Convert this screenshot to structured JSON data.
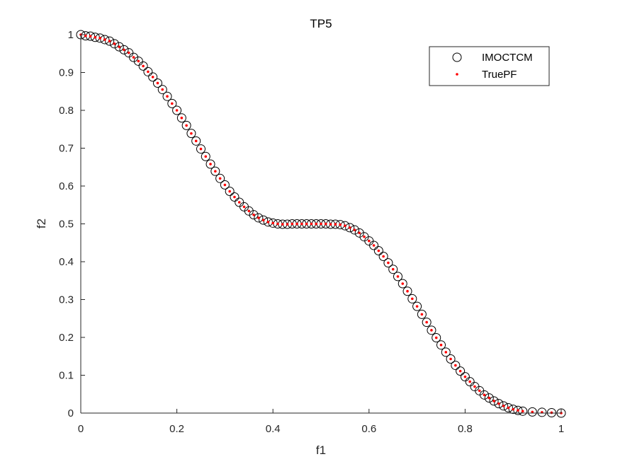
{
  "chart_data": {
    "type": "scatter",
    "title": "TP5",
    "xlabel": "f1",
    "ylabel": "f2",
    "xlim": [
      0,
      1
    ],
    "ylim": [
      0,
      1
    ],
    "xticks": [
      0,
      0.2,
      0.4,
      0.6,
      0.8,
      1
    ],
    "yticks": [
      0,
      0.1,
      0.2,
      0.3,
      0.4,
      0.5,
      0.6,
      0.7,
      0.8,
      0.9,
      1
    ],
    "xtick_labels": [
      "0",
      "0.2",
      "0.4",
      "0.6",
      "0.8",
      "1"
    ],
    "ytick_labels": [
      "0",
      "0.1",
      "0.2",
      "0.3",
      "0.4",
      "0.5",
      "0.6",
      "0.7",
      "0.8",
      "0.9",
      "1"
    ],
    "grid": false,
    "legend_position": "top-right",
    "series": [
      {
        "name": "IMOCTCM",
        "marker": "open-circle",
        "color": "#000000",
        "points": [
          [
            0.0,
            1.0
          ],
          [
            0.01,
            0.997
          ],
          [
            0.02,
            0.996
          ],
          [
            0.03,
            0.993
          ],
          [
            0.04,
            0.991
          ],
          [
            0.05,
            0.987
          ],
          [
            0.06,
            0.983
          ],
          [
            0.07,
            0.976
          ],
          [
            0.08,
            0.968
          ],
          [
            0.09,
            0.96
          ],
          [
            0.1,
            0.952
          ],
          [
            0.11,
            0.94
          ],
          [
            0.12,
            0.93
          ],
          [
            0.13,
            0.917
          ],
          [
            0.14,
            0.902
          ],
          [
            0.15,
            0.888
          ],
          [
            0.16,
            0.872
          ],
          [
            0.17,
            0.855
          ],
          [
            0.18,
            0.837
          ],
          [
            0.19,
            0.818
          ],
          [
            0.2,
            0.8
          ],
          [
            0.21,
            0.78
          ],
          [
            0.22,
            0.76
          ],
          [
            0.23,
            0.739
          ],
          [
            0.24,
            0.719
          ],
          [
            0.25,
            0.698
          ],
          [
            0.26,
            0.678
          ],
          [
            0.27,
            0.658
          ],
          [
            0.28,
            0.639
          ],
          [
            0.29,
            0.62
          ],
          [
            0.3,
            0.603
          ],
          [
            0.31,
            0.586
          ],
          [
            0.32,
            0.571
          ],
          [
            0.33,
            0.557
          ],
          [
            0.34,
            0.545
          ],
          [
            0.35,
            0.534
          ],
          [
            0.36,
            0.524
          ],
          [
            0.37,
            0.516
          ],
          [
            0.38,
            0.51
          ],
          [
            0.39,
            0.505
          ],
          [
            0.4,
            0.502
          ],
          [
            0.41,
            0.5
          ],
          [
            0.42,
            0.499
          ],
          [
            0.43,
            0.499
          ],
          [
            0.44,
            0.5
          ],
          [
            0.45,
            0.5
          ],
          [
            0.46,
            0.5
          ],
          [
            0.47,
            0.5
          ],
          [
            0.48,
            0.5
          ],
          [
            0.49,
            0.5
          ],
          [
            0.5,
            0.5
          ],
          [
            0.51,
            0.5
          ],
          [
            0.52,
            0.499
          ],
          [
            0.53,
            0.499
          ],
          [
            0.54,
            0.498
          ],
          [
            0.55,
            0.495
          ],
          [
            0.56,
            0.49
          ],
          [
            0.57,
            0.484
          ],
          [
            0.58,
            0.476
          ],
          [
            0.59,
            0.466
          ],
          [
            0.6,
            0.455
          ],
          [
            0.61,
            0.443
          ],
          [
            0.62,
            0.429
          ],
          [
            0.63,
            0.414
          ],
          [
            0.64,
            0.397
          ],
          [
            0.65,
            0.38
          ],
          [
            0.66,
            0.361
          ],
          [
            0.67,
            0.342
          ],
          [
            0.68,
            0.322
          ],
          [
            0.69,
            0.302
          ],
          [
            0.7,
            0.282
          ],
          [
            0.71,
            0.261
          ],
          [
            0.72,
            0.24
          ],
          [
            0.73,
            0.219
          ],
          [
            0.74,
            0.199
          ],
          [
            0.75,
            0.18
          ],
          [
            0.76,
            0.161
          ],
          [
            0.77,
            0.143
          ],
          [
            0.78,
            0.126
          ],
          [
            0.79,
            0.111
          ],
          [
            0.8,
            0.096
          ],
          [
            0.81,
            0.083
          ],
          [
            0.82,
            0.07
          ],
          [
            0.83,
            0.059
          ],
          [
            0.84,
            0.048
          ],
          [
            0.85,
            0.04
          ],
          [
            0.86,
            0.032
          ],
          [
            0.87,
            0.025
          ],
          [
            0.88,
            0.019
          ],
          [
            0.89,
            0.014
          ],
          [
            0.9,
            0.01
          ],
          [
            0.91,
            0.007
          ],
          [
            0.92,
            0.005
          ],
          [
            0.94,
            0.003
          ],
          [
            0.96,
            0.002
          ],
          [
            0.98,
            0.001
          ],
          [
            1.0,
            0.0
          ]
        ]
      },
      {
        "name": "TruePF",
        "marker": "dot",
        "color": "#ff0000",
        "points": [
          [
            0.0,
            1.0
          ],
          [
            0.01,
            0.997
          ],
          [
            0.02,
            0.996
          ],
          [
            0.03,
            0.993
          ],
          [
            0.04,
            0.991
          ],
          [
            0.05,
            0.987
          ],
          [
            0.06,
            0.983
          ],
          [
            0.07,
            0.976
          ],
          [
            0.08,
            0.968
          ],
          [
            0.09,
            0.96
          ],
          [
            0.1,
            0.952
          ],
          [
            0.11,
            0.94
          ],
          [
            0.12,
            0.93
          ],
          [
            0.13,
            0.917
          ],
          [
            0.14,
            0.902
          ],
          [
            0.15,
            0.888
          ],
          [
            0.16,
            0.872
          ],
          [
            0.17,
            0.855
          ],
          [
            0.18,
            0.837
          ],
          [
            0.19,
            0.818
          ],
          [
            0.2,
            0.8
          ],
          [
            0.21,
            0.78
          ],
          [
            0.22,
            0.76
          ],
          [
            0.23,
            0.739
          ],
          [
            0.24,
            0.719
          ],
          [
            0.25,
            0.698
          ],
          [
            0.26,
            0.678
          ],
          [
            0.27,
            0.658
          ],
          [
            0.28,
            0.639
          ],
          [
            0.29,
            0.62
          ],
          [
            0.3,
            0.603
          ],
          [
            0.31,
            0.586
          ],
          [
            0.32,
            0.571
          ],
          [
            0.33,
            0.557
          ],
          [
            0.34,
            0.545
          ],
          [
            0.35,
            0.534
          ],
          [
            0.36,
            0.524
          ],
          [
            0.37,
            0.516
          ],
          [
            0.38,
            0.51
          ],
          [
            0.39,
            0.505
          ],
          [
            0.4,
            0.502
          ],
          [
            0.41,
            0.5
          ],
          [
            0.42,
            0.499
          ],
          [
            0.43,
            0.499
          ],
          [
            0.44,
            0.5
          ],
          [
            0.45,
            0.5
          ],
          [
            0.46,
            0.5
          ],
          [
            0.47,
            0.5
          ],
          [
            0.48,
            0.5
          ],
          [
            0.49,
            0.5
          ],
          [
            0.5,
            0.5
          ],
          [
            0.51,
            0.5
          ],
          [
            0.52,
            0.499
          ],
          [
            0.53,
            0.499
          ],
          [
            0.54,
            0.498
          ],
          [
            0.55,
            0.495
          ],
          [
            0.56,
            0.49
          ],
          [
            0.57,
            0.484
          ],
          [
            0.58,
            0.476
          ],
          [
            0.59,
            0.466
          ],
          [
            0.6,
            0.455
          ],
          [
            0.61,
            0.443
          ],
          [
            0.62,
            0.429
          ],
          [
            0.63,
            0.414
          ],
          [
            0.64,
            0.397
          ],
          [
            0.65,
            0.38
          ],
          [
            0.66,
            0.361
          ],
          [
            0.67,
            0.342
          ],
          [
            0.68,
            0.322
          ],
          [
            0.69,
            0.302
          ],
          [
            0.7,
            0.282
          ],
          [
            0.71,
            0.261
          ],
          [
            0.72,
            0.24
          ],
          [
            0.73,
            0.219
          ],
          [
            0.74,
            0.199
          ],
          [
            0.75,
            0.18
          ],
          [
            0.76,
            0.161
          ],
          [
            0.77,
            0.143
          ],
          [
            0.78,
            0.126
          ],
          [
            0.79,
            0.111
          ],
          [
            0.8,
            0.096
          ],
          [
            0.81,
            0.083
          ],
          [
            0.82,
            0.07
          ],
          [
            0.83,
            0.059
          ],
          [
            0.84,
            0.048
          ],
          [
            0.85,
            0.04
          ],
          [
            0.86,
            0.032
          ],
          [
            0.87,
            0.025
          ],
          [
            0.88,
            0.019
          ],
          [
            0.89,
            0.014
          ],
          [
            0.9,
            0.01
          ],
          [
            0.91,
            0.007
          ],
          [
            0.92,
            0.005
          ],
          [
            0.94,
            0.003
          ],
          [
            0.96,
            0.002
          ],
          [
            0.98,
            0.001
          ],
          [
            1.0,
            0.0
          ]
        ]
      }
    ]
  }
}
